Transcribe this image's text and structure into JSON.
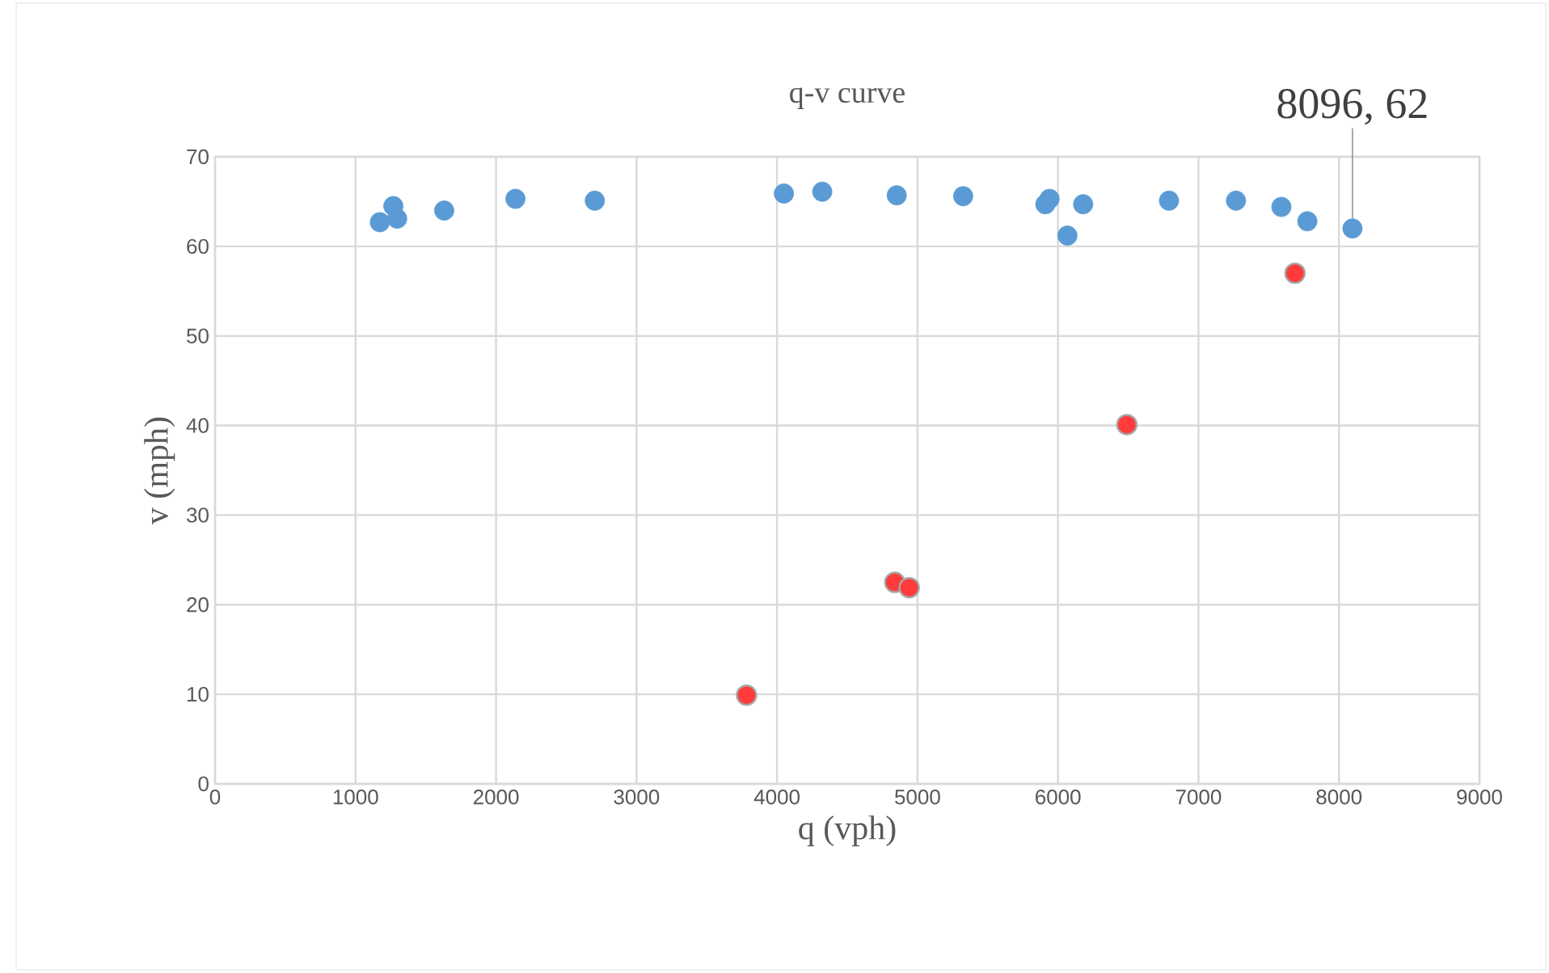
{
  "chart_data": {
    "type": "scatter",
    "title": "q-v curve",
    "xlabel": "q (vph)",
    "ylabel": "v (mph)",
    "series": [
      {
        "color": "#5b9bd5",
        "x": [
          1173,
          1269,
          1296,
          1631,
          2138,
          2703,
          4049,
          4322,
          4852,
          5325,
          5910,
          5940,
          6067,
          6179,
          6790,
          7267,
          7590,
          7775,
          8096
        ],
        "values": [
          62.7,
          64.5,
          63.1,
          64.0,
          65.3,
          65.1,
          65.9,
          66.1,
          65.7,
          65.6,
          64.7,
          65.3,
          61.2,
          64.7,
          65.1,
          65.1,
          64.4,
          62.8,
          62
        ]
      },
      {
        "color": "#ff3b3b",
        "x": [
          3783,
          4838,
          4941,
          6490,
          7687
        ],
        "values": [
          9.9,
          22.5,
          21.9,
          40.1,
          57.0
        ]
      }
    ],
    "annotations": [
      {
        "text": "8096, 62",
        "x": 8096,
        "y": 62
      }
    ],
    "xlim": [
      0,
      9000
    ],
    "ylim": [
      0,
      70
    ],
    "xticks": [
      0,
      1000,
      2000,
      3000,
      4000,
      5000,
      6000,
      7000,
      8000,
      9000
    ],
    "yticks": [
      0,
      10,
      20,
      30,
      40,
      50,
      60,
      70
    ],
    "grid": true,
    "marker": "circle"
  }
}
